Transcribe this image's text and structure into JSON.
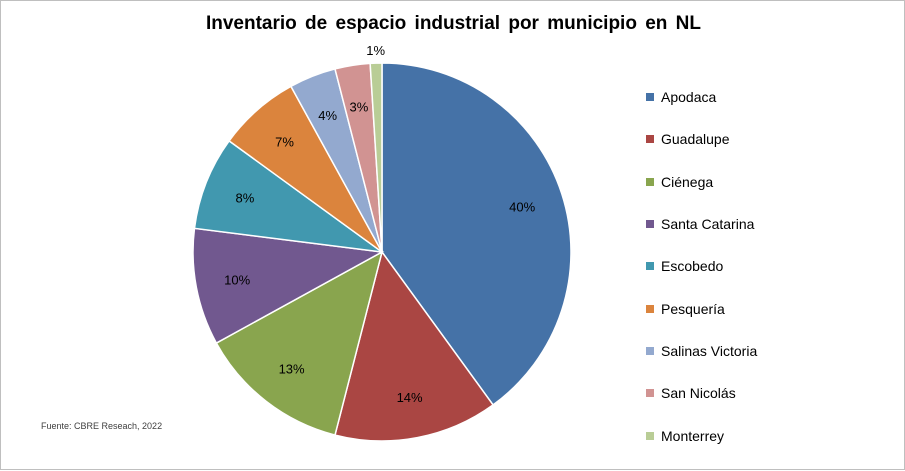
{
  "chart_data": {
    "type": "pie",
    "title": "Inventario de espacio industrial  por municipio  en NL",
    "categories": [
      "Apodaca",
      "Guadalupe",
      "Ciénega",
      "Santa Catarina",
      "Escobedo",
      "Pesquería",
      "Salinas Victoria",
      "San Nicolás",
      "Monterrey"
    ],
    "values": [
      40,
      14,
      13,
      10,
      8,
      7,
      4,
      3,
      1
    ],
    "data_labels": [
      "40%",
      "14%",
      "13%",
      "10%",
      "8%",
      "7%",
      "4%",
      "3%",
      "1%"
    ],
    "colors": [
      "#4572A7",
      "#AA4643",
      "#89A54E",
      "#71588F",
      "#4198AF",
      "#DB843D",
      "#93A9CF",
      "#D19392",
      "#B9CD96"
    ],
    "legend_position": "right"
  },
  "footer": {
    "source": "Fuente: CBRE Reseach, 2022"
  }
}
